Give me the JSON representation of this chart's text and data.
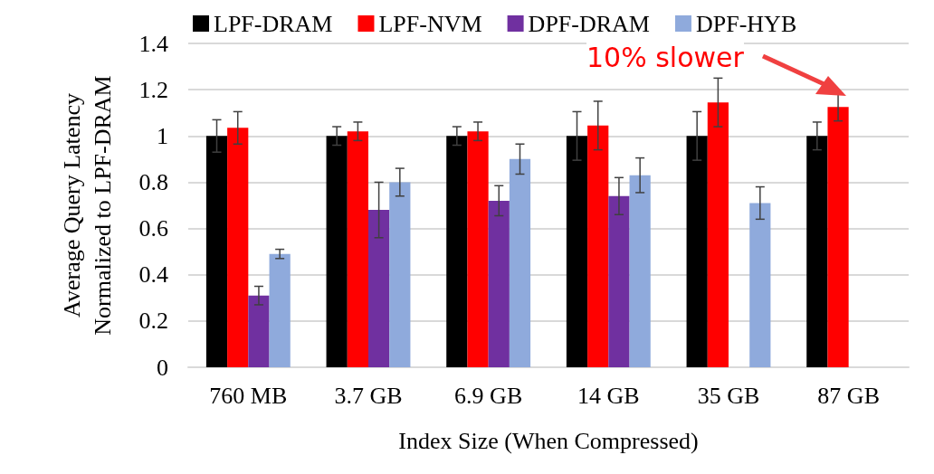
{
  "chart_data": {
    "type": "bar",
    "xlabel": "Index Size (When Compressed)",
    "ylabel": "Average Query Latency\nNormalized to LPF-DRAM",
    "categories": [
      "760 MB",
      "3.7 GB",
      "6.9 GB",
      "14 GB",
      "35 GB",
      "87 GB"
    ],
    "series": [
      {
        "name": "LPF-DRAM",
        "color": "#000000",
        "values": [
          1,
          1,
          1,
          1,
          1,
          1
        ],
        "errors": [
          0.07,
          0.04,
          0.04,
          0.105,
          0.105,
          0.06
        ]
      },
      {
        "name": "LPF-NVM",
        "color": "#ff0000",
        "values": [
          1.035,
          1.02,
          1.02,
          1.045,
          1.145,
          1.125
        ],
        "errors": [
          0.07,
          0.04,
          0.04,
          0.105,
          0.105,
          0.06
        ]
      },
      {
        "name": "DPF-DRAM",
        "color": "#7030a0",
        "values": [
          0.31,
          0.68,
          0.72,
          0.74,
          0,
          0
        ],
        "errors": [
          0.04,
          0.12,
          0.065,
          0.08,
          null,
          null
        ]
      },
      {
        "name": "DPF-HYB",
        "color": "#8faadc",
        "values": [
          0.49,
          0.8,
          0.9,
          0.83,
          0.71,
          0
        ],
        "errors": [
          0.02,
          0.06,
          0.065,
          0.075,
          0.07,
          null
        ]
      }
    ],
    "annotations": [
      "10% slower"
    ],
    "ylim": [
      0,
      1.4
    ],
    "yticks": [
      0,
      0.2,
      0.4,
      0.6,
      0.8,
      1,
      1.2,
      1.4
    ],
    "grid": "y",
    "legend": "top"
  }
}
